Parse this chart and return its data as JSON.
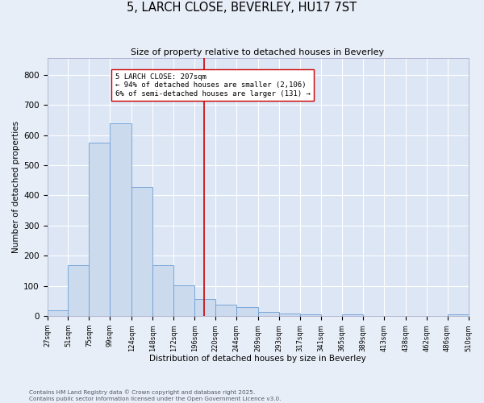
{
  "title": "5, LARCH CLOSE, BEVERLEY, HU17 7ST",
  "subtitle": "Size of property relative to detached houses in Beverley",
  "xlabel": "Distribution of detached houses by size in Beverley",
  "ylabel": "Number of detached properties",
  "bar_color": "#ccdaee",
  "bar_edge_color": "#6b9fd4",
  "background_color": "#dce6f5",
  "fig_background_color": "#e8eef7",
  "grid_color": "#ffffff",
  "vline_x": 207,
  "vline_color": "#cc0000",
  "annotation_text": "5 LARCH CLOSE: 207sqm\n← 94% of detached houses are smaller (2,106)\n6% of semi-detached houses are larger (131) →",
  "annotation_box_color": "#cc0000",
  "footer_line1": "Contains HM Land Registry data © Crown copyright and database right 2025.",
  "footer_line2": "Contains public sector information licensed under the Open Government Licence v3.0.",
  "bins": [
    27,
    51,
    75,
    99,
    124,
    148,
    172,
    196,
    220,
    244,
    269,
    293,
    317,
    341,
    365,
    389,
    413,
    438,
    462,
    486,
    510
  ],
  "counts": [
    20,
    168,
    575,
    638,
    428,
    170,
    103,
    56,
    38,
    30,
    14,
    8,
    5,
    0,
    5,
    0,
    0,
    0,
    0,
    5
  ],
  "ylim": [
    0,
    855
  ],
  "yticks": [
    0,
    100,
    200,
    300,
    400,
    500,
    600,
    700,
    800
  ]
}
